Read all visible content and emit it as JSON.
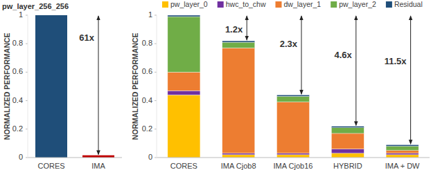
{
  "chart_data": [
    {
      "type": "bar",
      "title": "pw_layer_256_256",
      "y_label": "NORMALIZED PERFORMANCE",
      "categories": [
        "CORES",
        "IMA"
      ],
      "values": [
        1,
        0.016
      ],
      "colors": [
        "#1f4e79",
        "#c00000"
      ],
      "ylim": [
        0,
        1
      ],
      "yticks": [
        0,
        0.2,
        0.4,
        0.6,
        0.8,
        1
      ],
      "grid": false,
      "annotations": [
        {
          "text": "61x",
          "category": "IMA"
        }
      ]
    },
    {
      "type": "bar",
      "stacked": true,
      "y_label": "NORMALIZED PERFORMANCE",
      "legend": "top",
      "categories": [
        "CORES",
        "IMA Cjob8",
        "IMA Cjob16",
        "HYBRID",
        "IMA + DW"
      ],
      "series": [
        {
          "name": "pw_layer_0",
          "color": "#ffc000",
          "values": [
            0.44,
            0.02,
            0.02,
            0.03,
            0.02
          ]
        },
        {
          "name": "hwc_to_chw",
          "color": "#7030a0",
          "values": [
            0.03,
            0.01,
            0.01,
            0.03,
            0.01
          ]
        },
        {
          "name": "dw_layer_1",
          "color": "#ed7d31",
          "values": [
            0.13,
            0.74,
            0.36,
            0.11,
            0.02
          ]
        },
        {
          "name": "pw_layer_2",
          "color": "#70ad47",
          "values": [
            0.39,
            0.04,
            0.04,
            0.04,
            0.03
          ]
        },
        {
          "name": "Residual",
          "color": "#1f4e79",
          "values": [
            0.01,
            0.01,
            0.01,
            0.01,
            0.01
          ]
        }
      ],
      "ylim": [
        0,
        1
      ],
      "yticks": [
        0,
        0.2,
        0.4,
        0.6,
        0.8,
        1
      ],
      "grid": false,
      "annotations": [
        {
          "text": "1.2x",
          "category": "IMA Cjob8"
        },
        {
          "text": "2.3x",
          "category": "IMA Cjob16"
        },
        {
          "text": "4.6x",
          "category": "HYBRID"
        },
        {
          "text": "11.5x",
          "category": "IMA + DW"
        }
      ]
    }
  ]
}
